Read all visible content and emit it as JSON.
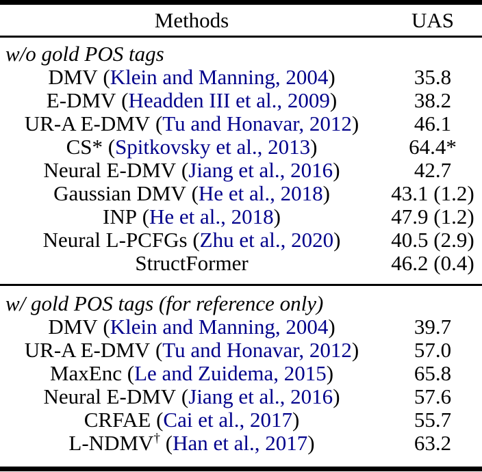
{
  "colors": {
    "citation_blue": "#00008B",
    "text_black": "#000000",
    "background": "#ffffff"
  },
  "table": {
    "columns": [
      "Methods",
      "UAS"
    ],
    "sections": [
      {
        "header": "w/o gold POS tags",
        "rows": [
          {
            "name": "DMV",
            "sup": "",
            "open": " (",
            "cite": "Klein and Manning, 2004",
            "close": ")",
            "uas": "35.8"
          },
          {
            "name": "E-DMV",
            "sup": "",
            "open": " (",
            "cite": "Headden III et al., 2009",
            "close": ")",
            "uas": "38.2"
          },
          {
            "name": "UR-A E-DMV",
            "sup": "",
            "open": " (",
            "cite": "Tu and Honavar, 2012",
            "close": ")",
            "uas": "46.1"
          },
          {
            "name": "CS*",
            "sup": "",
            "open": " (",
            "cite": "Spitkovsky et al., 2013",
            "close": ")",
            "uas": "64.4*"
          },
          {
            "name": "Neural E-DMV",
            "sup": "",
            "open": " (",
            "cite": "Jiang et al., 2016",
            "close": ")",
            "uas": "42.7"
          },
          {
            "name": "Gaussian DMV",
            "sup": "",
            "open": " (",
            "cite": "He et al., 2018",
            "close": ")",
            "uas": "43.1 (1.2)"
          },
          {
            "name": "INP",
            "sup": "",
            "open": " (",
            "cite": "He et al., 2018",
            "close": ")",
            "uas": "47.9 (1.2)"
          },
          {
            "name": "Neural L-PCFGs",
            "sup": "",
            "open": " (",
            "cite": "Zhu et al., 2020",
            "close": ")",
            "uas": "40.5 (2.9)"
          },
          {
            "name": "StructFormer",
            "sup": "",
            "open": "",
            "cite": "",
            "close": "",
            "uas": "46.2 (0.4)"
          }
        ]
      },
      {
        "header": "w/ gold POS tags (for reference only)",
        "rows": [
          {
            "name": "DMV",
            "sup": "",
            "open": " (",
            "cite": "Klein and Manning, 2004",
            "close": ")",
            "uas": "39.7"
          },
          {
            "name": "UR-A E-DMV",
            "sup": "",
            "open": " (",
            "cite": "Tu and Honavar, 2012",
            "close": ")",
            "uas": "57.0"
          },
          {
            "name": "MaxEnc",
            "sup": "",
            "open": " (",
            "cite": "Le and Zuidema, 2015",
            "close": ")",
            "uas": "65.8"
          },
          {
            "name": "Neural E-DMV",
            "sup": "",
            "open": " (",
            "cite": "Jiang et al., 2016",
            "close": ")",
            "uas": "57.6"
          },
          {
            "name": "CRFAE",
            "sup": "",
            "open": " (",
            "cite": "Cai et al., 2017",
            "close": ")",
            "uas": "55.7"
          },
          {
            "name": "L-NDMV",
            "sup": "†",
            "open": " (",
            "cite": "Han et al., 2017",
            "close": ")",
            "uas": "63.2"
          }
        ]
      }
    ]
  }
}
